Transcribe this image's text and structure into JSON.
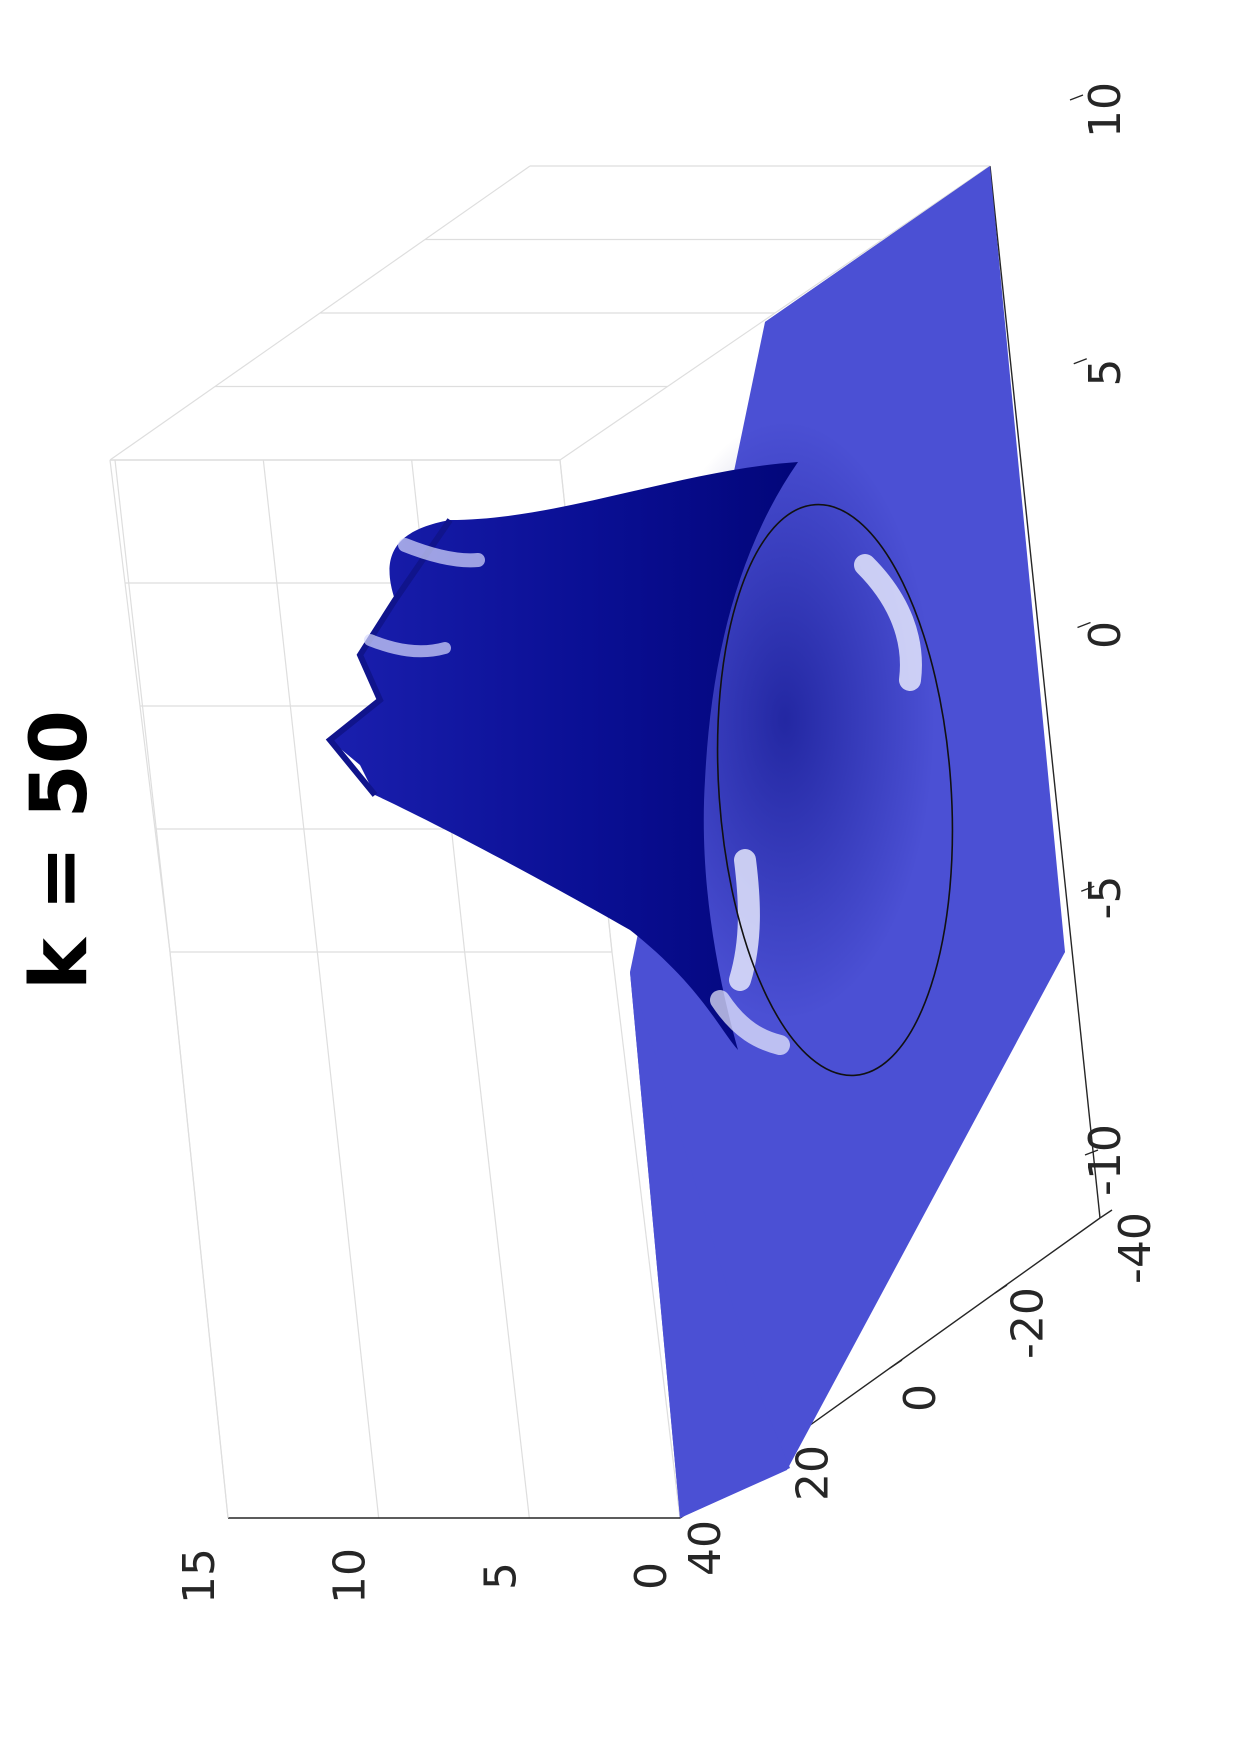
{
  "chart_data": {
    "type": "surface-3d",
    "title": "k = 50",
    "xlabel": "",
    "ylabel": "",
    "zlabel": "",
    "x_ticks": [
      "-10",
      "-5",
      "0",
      "5",
      "10"
    ],
    "y_ticks": [
      "40",
      "20",
      "0",
      "-20",
      "-40"
    ],
    "z_ticks": [
      "0",
      "5",
      "10",
      "15"
    ],
    "xlim": [
      -10,
      10
    ],
    "ylim": [
      -40,
      40
    ],
    "zlim": [
      0,
      15
    ],
    "grid": true,
    "legend": "none",
    "surface_color": "#4b50d4",
    "peak_color": "#02067a",
    "highlight_color": "#e8ecff",
    "rotation": "page rotated 90 degrees counter-clockwise"
  }
}
